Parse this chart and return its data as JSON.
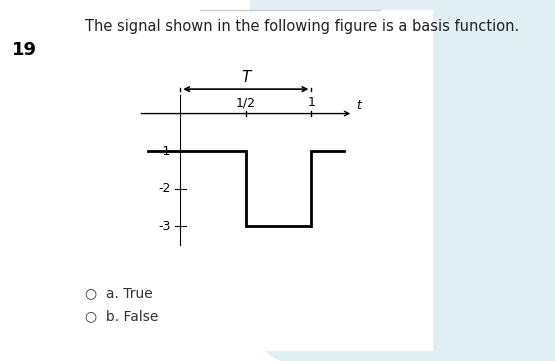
{
  "title": "The signal shown in the following figure is a basis function.",
  "question_number": "19",
  "bg_color": "#ffffff",
  "outer_bg": "#e8f2f5",
  "panel_bg": "#eaf4f7",
  "signal_x_full": [
    -0.25,
    0.5,
    0.5,
    1.0,
    1.0,
    1.25
  ],
  "signal_y_full": [
    -1,
    -1,
    -3,
    -3,
    -1,
    -1
  ],
  "ytick_vals": [
    -1,
    -2,
    -3
  ],
  "ytick_labels": [
    "-1",
    "-2",
    "-3"
  ],
  "axis_t_label": "t",
  "period_label": "T",
  "half_label": "1/2",
  "one_label": "1",
  "options": [
    "a. True",
    "b. False"
  ],
  "line_color": "#000000",
  "axis_color": "#000000",
  "font_size_title": 10.5,
  "font_size_tick": 9,
  "font_size_qnum": 13
}
